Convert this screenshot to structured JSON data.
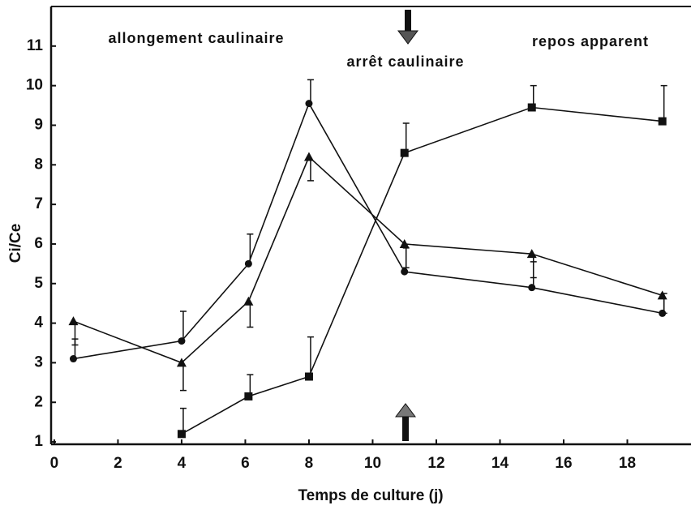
{
  "chart_data": {
    "type": "line",
    "xlabel": "Temps de culture (j)",
    "ylabel": "Ci/Ce",
    "annotations": [
      "allongement caulinaire",
      "arrêt caulinaire",
      "repos apparent"
    ],
    "xlim": [
      -0.1,
      20
    ],
    "ylim": [
      0.94,
      12
    ],
    "xticks": [
      0,
      2,
      4,
      6,
      8,
      10,
      12,
      14,
      16,
      18
    ],
    "yticks": [
      1,
      2,
      3,
      4,
      5,
      6,
      7,
      8,
      9,
      10,
      11
    ],
    "series": [
      {
        "marker": "circle",
        "color": "#111",
        "error_direction": "up",
        "x": [
          0.6,
          4,
          6.1,
          8,
          11,
          15,
          19.1
        ],
        "values": [
          3.1,
          3.55,
          5.5,
          9.55,
          5.3,
          4.9,
          4.25
        ],
        "errors": [
          0.5,
          0.75,
          0.75,
          0.6,
          0.6,
          0.65,
          0.5
        ]
      },
      {
        "marker": "triangle",
        "color": "#111",
        "error_direction": "down",
        "x": [
          0.6,
          4,
          6.1,
          8,
          11,
          15,
          19.1
        ],
        "values": [
          4.05,
          3.0,
          4.55,
          8.2,
          6.0,
          5.75,
          4.7
        ],
        "errors": [
          0.6,
          0.7,
          0.65,
          0.6,
          0.6,
          0.6,
          0.45
        ]
      },
      {
        "marker": "square",
        "color": "#111",
        "error_direction": "up",
        "x": [
          4,
          6.1,
          8,
          11,
          15,
          19.1
        ],
        "values": [
          1.2,
          2.15,
          2.65,
          8.3,
          9.45,
          9.1
        ],
        "errors": [
          0.65,
          0.55,
          1.0,
          0.75,
          0.55,
          0.9
        ]
      }
    ]
  }
}
